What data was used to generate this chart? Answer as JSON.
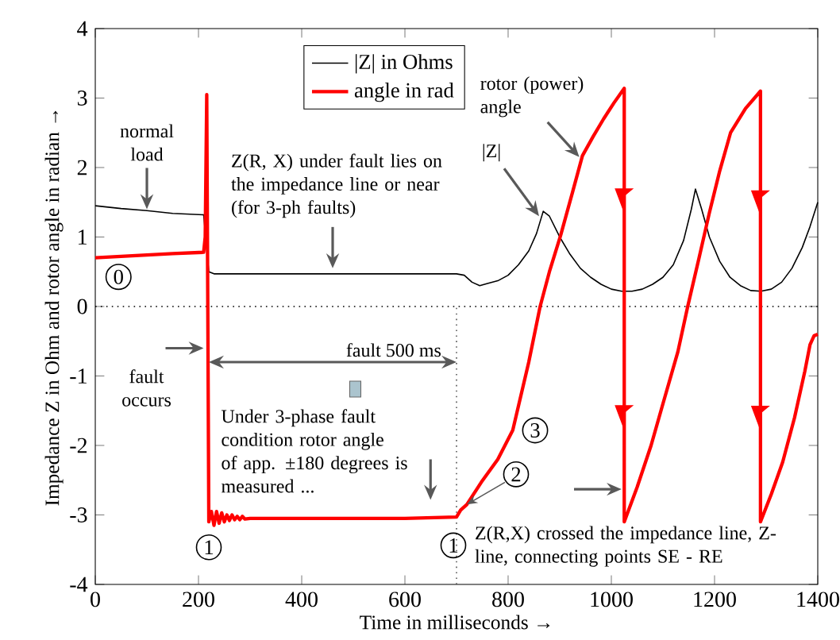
{
  "chart_data": {
    "type": "line",
    "xlabel": "Time in milliseconds →",
    "ylabel": "Impedance Z in Ohm and rotor angle in radian →",
    "xlim": [
      0,
      1400
    ],
    "ylim": [
      -4,
      4
    ],
    "xticks": [
      0,
      200,
      400,
      600,
      800,
      1000,
      1200,
      1400
    ],
    "yticks": [
      -4,
      -3,
      -2,
      -1,
      0,
      1,
      2,
      3,
      4
    ],
    "legend": "top",
    "series": [
      {
        "name": "|Z| in Ohms",
        "color": "#000000",
        "x": [
          0,
          50,
          100,
          150,
          210,
          220,
          230,
          300,
          400,
          500,
          600,
          700,
          715,
          730,
          745,
          760,
          780,
          800,
          820,
          840,
          855,
          868,
          880,
          900,
          920,
          940,
          960,
          980,
          1000,
          1020,
          1040,
          1060,
          1080,
          1100,
          1120,
          1140,
          1155,
          1163,
          1175,
          1190,
          1210,
          1230,
          1250,
          1270,
          1290,
          1310,
          1330,
          1350,
          1370,
          1385,
          1400
        ],
        "values": [
          1.45,
          1.41,
          1.38,
          1.34,
          1.32,
          0.5,
          0.47,
          0.47,
          0.47,
          0.47,
          0.47,
          0.47,
          0.45,
          0.35,
          0.3,
          0.33,
          0.37,
          0.45,
          0.6,
          0.8,
          1.05,
          1.37,
          1.3,
          1.0,
          0.75,
          0.55,
          0.42,
          0.32,
          0.25,
          0.22,
          0.22,
          0.25,
          0.32,
          0.42,
          0.6,
          0.95,
          1.4,
          1.69,
          1.4,
          1.0,
          0.65,
          0.42,
          0.3,
          0.23,
          0.22,
          0.25,
          0.35,
          0.55,
          0.85,
          1.15,
          1.5
        ]
      },
      {
        "name": "angle in rad",
        "color": "#ff0000",
        "x": [
          0,
          50,
          100,
          150,
          210,
          213,
          216,
          218,
          220,
          225,
          230,
          235,
          240,
          245,
          250,
          255,
          260,
          265,
          270,
          275,
          280,
          285,
          290,
          300,
          400,
          500,
          600,
          700,
          708,
          720,
          748,
          780,
          809,
          840,
          862,
          880,
          902,
          925,
          944,
          965,
          985,
          1005,
          1025,
          1025,
          1050,
          1077,
          1100,
          1129,
          1148,
          1170,
          1190,
          1210,
          1231,
          1260,
          1289,
          1289,
          1310,
          1332,
          1355,
          1375,
          1385,
          1393,
          1400
        ],
        "values": [
          0.7,
          0.72,
          0.74,
          0.76,
          0.78,
          1.0,
          3.05,
          0,
          -3.1,
          -2.95,
          -3.15,
          -2.95,
          -3.12,
          -2.97,
          -3.1,
          -3.0,
          -3.08,
          -3.0,
          -3.07,
          -3.02,
          -3.07,
          -3.02,
          -3.06,
          -3.05,
          -3.05,
          -3.05,
          -3.05,
          -3.03,
          -2.93,
          -2.85,
          -2.53,
          -2.2,
          -1.78,
          -0.8,
          0,
          0.5,
          1.03,
          1.65,
          2.17,
          2.45,
          2.7,
          2.93,
          3.14,
          -3.1,
          -2.6,
          -2.0,
          -1.4,
          -0.65,
          0,
          0.7,
          1.35,
          1.95,
          2.5,
          2.85,
          3.1,
          -3.1,
          -2.7,
          -2.24,
          -1.6,
          -0.93,
          -0.55,
          -0.42,
          -0.4
        ]
      }
    ],
    "ref_lines": [
      {
        "axis": "y",
        "value": 0,
        "line_style": "dotted",
        "color": "#000000"
      },
      {
        "axis": "x",
        "value": 700,
        "line_style": "dotted",
        "color": "#555555"
      }
    ],
    "annotations": [
      {
        "text": "normal load",
        "x": 100,
        "y": 1.4
      },
      {
        "text": "Z(R, X) under fault lies on the impedance line or near (for 3-ph faults)",
        "x": 460,
        "y": 0.55
      },
      {
        "text": "rotor (power) angle",
        "x": 938,
        "y": 2.15
      },
      {
        "text": "|Z|",
        "x": 860,
        "y": 1.3
      },
      {
        "text": "fault occurs",
        "x": 210,
        "y": -0.6
      },
      "fault 500 ms",
      "Under 3-phase fault condition rotor angle of app. ±180 degrees is measured ...",
      {
        "text": "Z(R,X) crossed the impedance line, Z-line, connecting points SE - RE",
        "x": 1020,
        "y": -2.63
      },
      {
        "text": "0",
        "x": 45,
        "y": 0.7
      },
      {
        "text": "1",
        "x": 220,
        "y": -3.1
      },
      {
        "text": "1",
        "x": 700,
        "y": -3.05
      },
      {
        "text": "2",
        "x": 720,
        "y": -2.85
      },
      {
        "text": "3",
        "x": 800,
        "y": -1.6
      }
    ]
  }
}
